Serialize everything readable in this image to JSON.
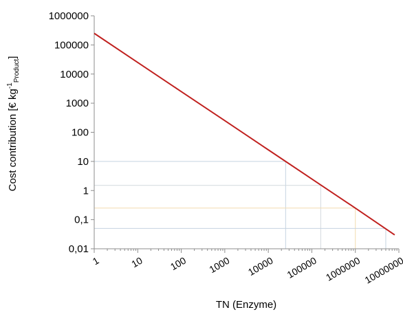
{
  "chart_data": {
    "type": "line",
    "xlabel": "TN (Enzyme)",
    "ylabel": {
      "main": "Cost contribution [€ kg",
      "sup": "-1",
      "sub": "Product",
      "close": "]"
    },
    "x_scale": "log",
    "y_scale": "log",
    "xlim": [
      1,
      10000000
    ],
    "ylim": [
      0.01,
      1000000
    ],
    "x_ticks": [
      "1",
      "10",
      "100",
      "1000",
      "10000",
      "100000",
      "1000000",
      "10000000"
    ],
    "y_ticks": [
      "0,01",
      "0,1",
      "1",
      "10",
      "100",
      "1000",
      "10000",
      "100000",
      "1000000"
    ],
    "grid": false,
    "series": [
      {
        "x": [
          1,
          10,
          100,
          1000,
          10000,
          100000,
          1000000,
          8000000
        ],
        "y": [
          250000,
          25000,
          2500,
          250,
          25,
          2.5,
          0.25,
          0.03
        ],
        "color": "#c0201e"
      }
    ],
    "reference_lines": [
      {
        "x": 25000,
        "y": 10,
        "color": "#c5d3e0"
      },
      {
        "x": 160000,
        "y": 1.5,
        "color": "#d2d8dd"
      },
      {
        "x": 1000000,
        "y": 0.25,
        "color": "#f3dcb0"
      },
      {
        "x": 5000000,
        "y": 0.05,
        "color": "#c5d3e0"
      }
    ]
  }
}
